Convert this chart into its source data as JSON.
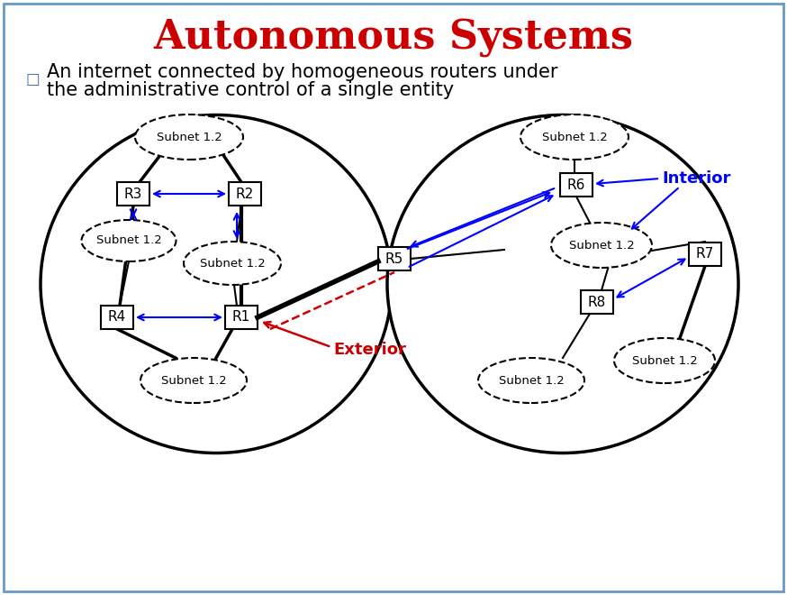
{
  "title": "Autonomous Systems",
  "title_color": "#cc0000",
  "title_fontsize": 32,
  "bg_color": "#ffffff",
  "border_color": "#6699cc",
  "bullet_text_line1": "An internet connected by homogeneous routers under",
  "bullet_text_line2": "the administrative control of a single entity",
  "text_fontsize": 15,
  "subnet_label": "Subnet 1.2",
  "interior_label": "Interior",
  "exterior_label": "Exterior",
  "interior_color": "#0000ff",
  "exterior_color": "#cc0000"
}
